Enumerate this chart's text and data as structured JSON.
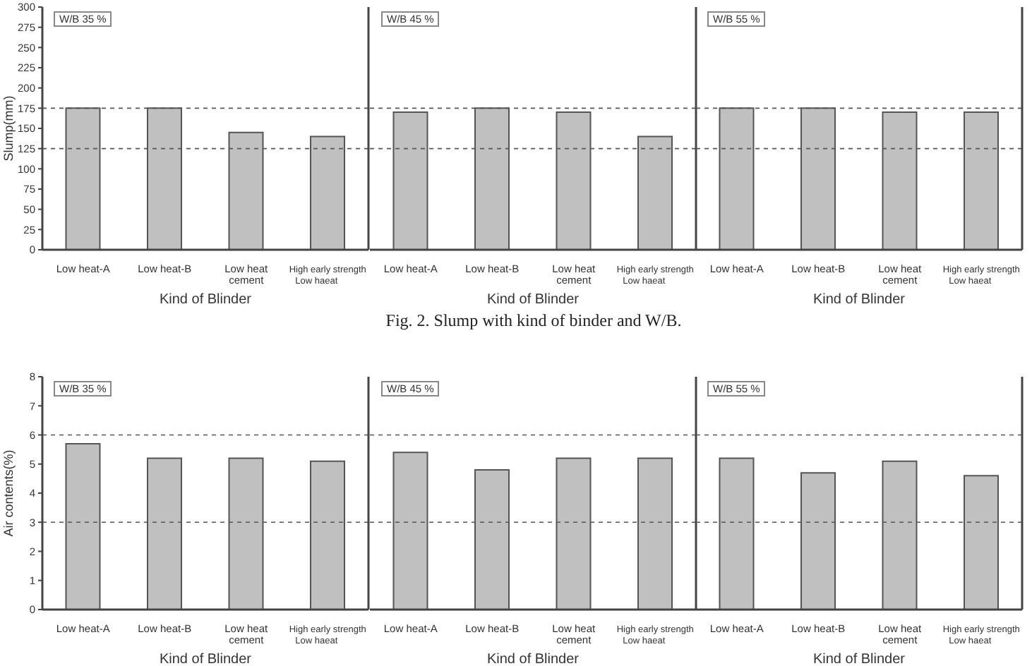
{
  "chart_data": [
    {
      "type": "bar",
      "title": "W/B 35 %",
      "xlabel": "Kind of Blinder",
      "ylabel": "Slump(mm)",
      "categories": [
        "Low heat-A",
        "Low heat-B",
        "Low heat\ncement",
        "High early strength\nLow haeat"
      ],
      "values": [
        175,
        175,
        145,
        140
      ],
      "color": "#c0c0c0",
      "ylim": [
        0,
        300
      ],
      "yticks": [
        0,
        25,
        50,
        75,
        100,
        125,
        150,
        175,
        200,
        225,
        250,
        275,
        300
      ],
      "grid": false,
      "legend": false,
      "ref_lines": [
        {
          "axis": "y",
          "value": 125,
          "line_style": "dashed",
          "color": "#555555"
        },
        {
          "axis": "y",
          "value": 175,
          "line_style": "dashed",
          "color": "#555555"
        }
      ]
    },
    {
      "type": "bar",
      "title": "W/B 45 %",
      "xlabel": "Kind of Blinder",
      "categories": [
        "Low heat-A",
        "Low heat-B",
        "Low heat\ncement",
        "High early strength\nLow haeat"
      ],
      "values": [
        170,
        175,
        170,
        140
      ],
      "color": "#c0c0c0",
      "ylim": [
        0,
        300
      ],
      "yticks": [
        0,
        25,
        50,
        75,
        100,
        125,
        150,
        175,
        200,
        225,
        250,
        275,
        300
      ],
      "tick_labels": "x",
      "grid": false,
      "legend": false,
      "annotations": [
        "Fig. 2. Slump with kind of binder and W/B."
      ],
      "ref_lines": [
        {
          "axis": "y",
          "value": 125,
          "line_style": "dashed",
          "color": "#555555"
        },
        {
          "axis": "y",
          "value": 175,
          "line_style": "dashed",
          "color": "#555555"
        }
      ]
    },
    {
      "type": "bar",
      "title": "W/B 55 %",
      "xlabel": "Kind of Blinder",
      "categories": [
        "Low heat-A",
        "Low heat-B",
        "Low heat\ncement",
        "High early strength\nLow haeat"
      ],
      "values": [
        175,
        175,
        170,
        170
      ],
      "color": "#c0c0c0",
      "ylim": [
        0,
        300
      ],
      "yticks": [
        0,
        25,
        50,
        75,
        100,
        125,
        150,
        175,
        200,
        225,
        250,
        275,
        300
      ],
      "tick_labels": "x",
      "grid": false,
      "legend": false,
      "ref_lines": [
        {
          "axis": "y",
          "value": 125,
          "line_style": "dashed",
          "color": "#555555"
        },
        {
          "axis": "y",
          "value": 175,
          "line_style": "dashed",
          "color": "#555555"
        }
      ]
    },
    {
      "type": "bar",
      "title": "W/B 35 %",
      "xlabel": "Kind of Blinder",
      "ylabel": "Air contents(%)",
      "categories": [
        "Low heat-A",
        "Low heat-B",
        "Low heat\ncement",
        "High early strength\nLow haeat"
      ],
      "values": [
        5.7,
        5.2,
        5.2,
        5.1
      ],
      "color": "#c0c0c0",
      "ylim": [
        0,
        8
      ],
      "yticks": [
        0,
        1,
        2,
        3,
        4,
        5,
        6,
        7,
        8
      ],
      "grid": false,
      "legend": false,
      "ref_lines": [
        {
          "axis": "y",
          "value": 3,
          "line_style": "dashed",
          "color": "#555555"
        },
        {
          "axis": "y",
          "value": 6,
          "line_style": "dashed",
          "color": "#555555"
        }
      ]
    },
    {
      "type": "bar",
      "title": "W/B 45 %",
      "xlabel": "Kind of Blinder",
      "categories": [
        "Low heat-A",
        "Low heat-B",
        "Low heat\ncement",
        "High early strength\nLow haeat"
      ],
      "values": [
        5.4,
        4.8,
        5.2,
        5.2
      ],
      "color": "#c0c0c0",
      "ylim": [
        0,
        8
      ],
      "yticks": [
        0,
        1,
        2,
        3,
        4,
        5,
        6,
        7,
        8
      ],
      "tick_labels": "x",
      "grid": false,
      "legend": false,
      "ref_lines": [
        {
          "axis": "y",
          "value": 3,
          "line_style": "dashed",
          "color": "#555555"
        },
        {
          "axis": "y",
          "value": 6,
          "line_style": "dashed",
          "color": "#555555"
        }
      ]
    },
    {
      "type": "bar",
      "title": "W/B 55 %",
      "xlabel": "Kind of Blinder",
      "categories": [
        "Low heat-A",
        "Low heat-B",
        "Low heat\ncement",
        "High early strength\nLow haeat"
      ],
      "values": [
        5.2,
        4.7,
        5.1,
        4.6
      ],
      "color": "#c0c0c0",
      "ylim": [
        0,
        8
      ],
      "yticks": [
        0,
        1,
        2,
        3,
        4,
        5,
        6,
        7,
        8
      ],
      "tick_labels": "x",
      "grid": false,
      "legend": false,
      "ref_lines": [
        {
          "axis": "y",
          "value": 3,
          "line_style": "dashed",
          "color": "#555555"
        },
        {
          "axis": "y",
          "value": 6,
          "line_style": "dashed",
          "color": "#555555"
        }
      ]
    }
  ]
}
